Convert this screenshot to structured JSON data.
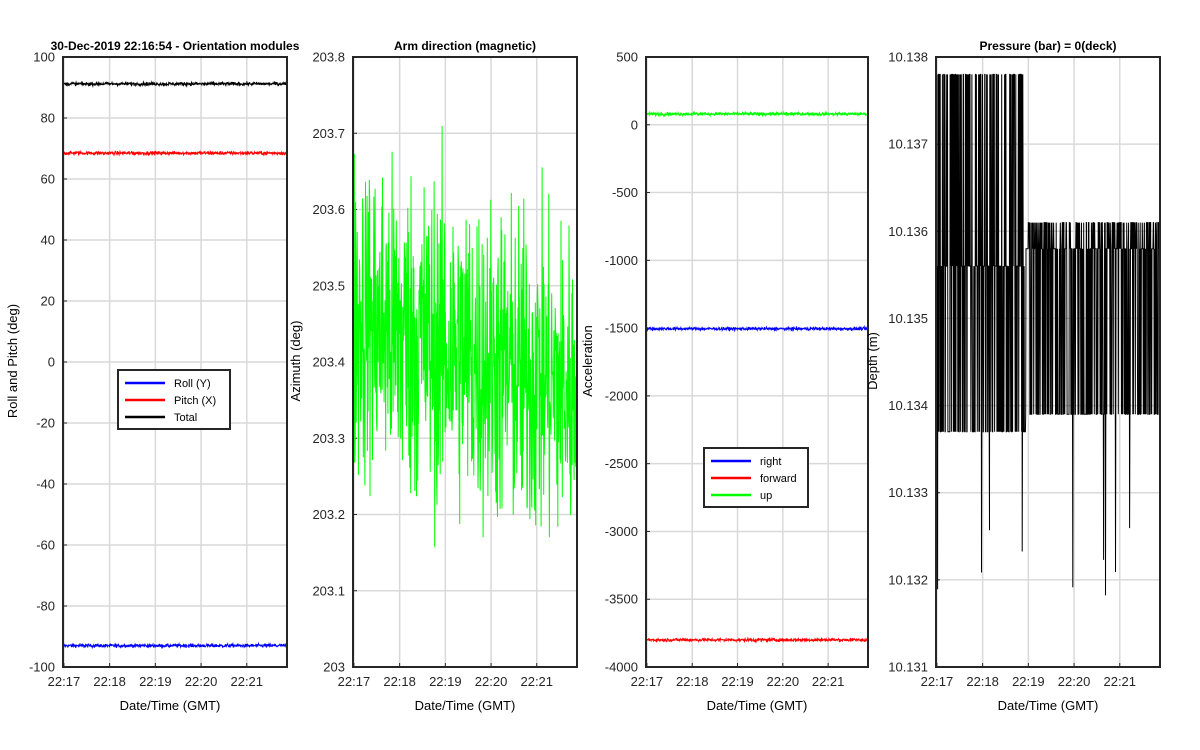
{
  "chart_data": [
    {
      "type": "line",
      "title": "30-Dec-2019 22:16:54 - Orientation modules",
      "xlabel": "Date/Time (GMT)",
      "ylabel": "Roll and Pitch (deg)",
      "xlim": [
        "22:17",
        "22:22"
      ],
      "ylim": [
        -100,
        100
      ],
      "xticks": [
        "22:17",
        "22:18",
        "22:19",
        "22:20",
        "22:21"
      ],
      "yticks": [
        -100,
        -80,
        -60,
        -40,
        -20,
        0,
        20,
        40,
        60,
        80,
        100
      ],
      "grid": true,
      "legend": "center",
      "series": [
        {
          "name": "Roll (Y)",
          "color": "#0000ff",
          "y": -93,
          "noise": 0.3
        },
        {
          "name": "Pitch (X)",
          "color": "#ff0000",
          "y": 68.5,
          "noise": 0.3
        },
        {
          "name": "Total",
          "color": "#000000",
          "y": 91.2,
          "noise": 0.3
        }
      ]
    },
    {
      "type": "line",
      "title": "Arm direction (magnetic)",
      "xlabel": "Date/Time (GMT)",
      "ylabel": "Azimuth (deg)",
      "xlim": [
        "22:17",
        "22:22"
      ],
      "ylim": [
        203,
        203.8
      ],
      "xticks": [
        "22:17",
        "22:18",
        "22:19",
        "22:20",
        "22:21"
      ],
      "yticks": [
        "203",
        "203.1",
        "203.2",
        "203.3",
        "203.4",
        "203.5",
        "203.6",
        "203.7",
        "203.8"
      ],
      "grid": true,
      "series": [
        {
          "color": "#00ff00",
          "mean_start": 203.46,
          "mean_end": 203.36,
          "noise": 0.2,
          "min": 203.09,
          "max": 203.74
        }
      ]
    },
    {
      "type": "line",
      "title": "",
      "xlabel": "Date/Time (GMT)",
      "ylabel": "Acceleration",
      "xlim": [
        "22:17",
        "22:22"
      ],
      "ylim": [
        -4000,
        500
      ],
      "xticks": [
        "22:17",
        "22:18",
        "22:19",
        "22:20",
        "22:21"
      ],
      "yticks": [
        -4000,
        -3500,
        -3000,
        -2500,
        -2000,
        -1500,
        -1000,
        -500,
        0,
        500
      ],
      "grid": true,
      "legend": "lower center",
      "series": [
        {
          "name": "right",
          "color": "#0000ff",
          "y": -1505,
          "noise": 6
        },
        {
          "name": "forward",
          "color": "#ff0000",
          "y": -3800,
          "noise": 6
        },
        {
          "name": "up",
          "color": "#00ff00",
          "y": 80,
          "noise": 6
        }
      ]
    },
    {
      "type": "line",
      "title": "Pressure (bar) = 0(deck)",
      "xlabel": "Date/Time (GMT)",
      "ylabel": "Depth (m)",
      "xlim": [
        "22:17",
        "22:22"
      ],
      "ylim": [
        10.131,
        10.138
      ],
      "xticks": [
        "22:17",
        "22:18",
        "22:19",
        "22:20",
        "22:21"
      ],
      "yticks": [
        "10.131",
        "10.132",
        "10.133",
        "10.134",
        "10.135",
        "10.136",
        "10.137",
        "10.138"
      ],
      "grid": true,
      "series": [
        {
          "color": "#000000",
          "levels_early": [
            10.1337,
            10.1356,
            10.1378
          ],
          "levels_late": [
            10.1339,
            10.1358,
            10.1361
          ],
          "min": 10.1318,
          "max": 10.1378
        }
      ]
    }
  ]
}
